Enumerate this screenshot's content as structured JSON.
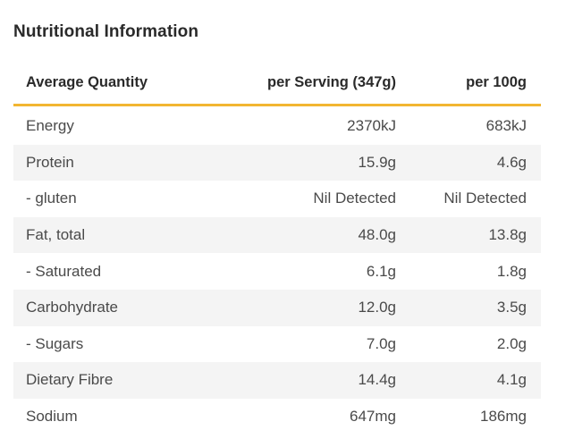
{
  "title": "Nutritional Information",
  "columns": [
    "Average Quantity",
    "per Serving (347g)",
    "per 100g"
  ],
  "rows": [
    {
      "label": "Energy",
      "per_serving": "2370kJ",
      "per_100g": "683kJ"
    },
    {
      "label": "Protein",
      "per_serving": "15.9g",
      "per_100g": "4.6g"
    },
    {
      "label": "- gluten",
      "per_serving": "Nil Detected",
      "per_100g": "Nil Detected"
    },
    {
      "label": "Fat, total",
      "per_serving": "48.0g",
      "per_100g": "13.8g"
    },
    {
      "label": "- Saturated",
      "per_serving": "6.1g",
      "per_100g": "1.8g"
    },
    {
      "label": "Carbohydrate",
      "per_serving": "12.0g",
      "per_100g": "3.5g"
    },
    {
      "label": "- Sugars",
      "per_serving": "7.0g",
      "per_100g": "2.0g"
    },
    {
      "label": "Dietary Fibre",
      "per_serving": "14.4g",
      "per_100g": "4.1g"
    },
    {
      "label": "Sodium",
      "per_serving": "647mg",
      "per_100g": "186mg"
    }
  ],
  "colors": {
    "accent_rule": "#f2b632",
    "shaded_row": "#f4f4f4"
  }
}
